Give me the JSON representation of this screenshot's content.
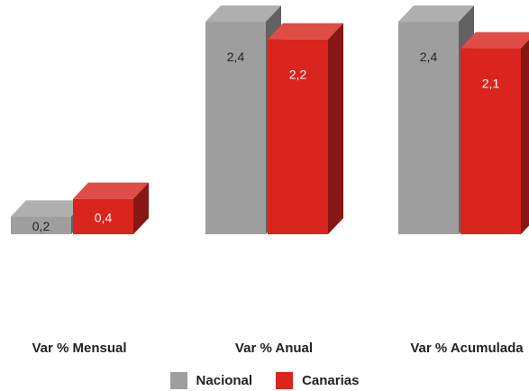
{
  "chart_data": {
    "type": "bar",
    "categories": [
      "Var % Mensual",
      "Var % Anual",
      "Var % Acumulada"
    ],
    "series": [
      {
        "name": "Nacional",
        "values": [
          0.2,
          2.4,
          2.4
        ],
        "labels": [
          "0,2",
          "2,4",
          "2,4"
        ],
        "color": "#9e9e9e"
      },
      {
        "name": "Canarias",
        "values": [
          0.4,
          2.2,
          2.1
        ],
        "labels": [
          "0,4",
          "2,2",
          "2,1"
        ],
        "color": "#d9251d"
      }
    ],
    "style": "3d-column",
    "legend_position": "bottom"
  }
}
